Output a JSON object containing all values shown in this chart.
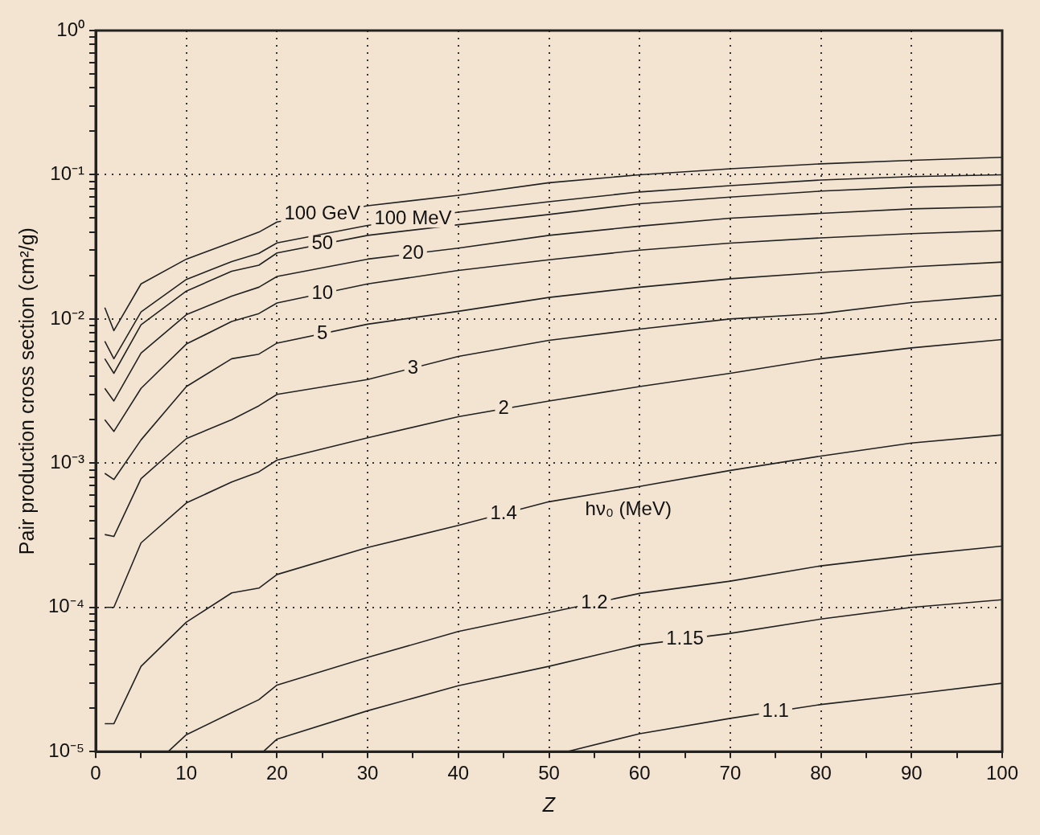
{
  "chart_data": {
    "type": "line",
    "xlabel": "Z",
    "ylabel": "Pair production cross section (cm²/g)",
    "annotations": [
      "hν₀ (MeV)"
    ],
    "log": "y",
    "grid": true,
    "legend": false,
    "xlim": [
      0,
      100
    ],
    "xticks": [
      0,
      {
        "value": 5,
        "label": null
      },
      10,
      {
        "value": 15,
        "label": null
      },
      20,
      {
        "value": 25,
        "label": null
      },
      30,
      {
        "value": 35,
        "label": null
      },
      40,
      {
        "value": 45,
        "label": null
      },
      50,
      {
        "value": 55,
        "label": null
      },
      60,
      {
        "value": 65,
        "label": null
      },
      70,
      {
        "value": 75,
        "label": null
      },
      80,
      {
        "value": 85,
        "label": null
      },
      90,
      {
        "value": 95,
        "label": null
      },
      100
    ],
    "ylim": [
      1e-05,
      1
    ],
    "yticks": [
      {
        "value": 1e-05,
        "label": "10⁻⁵"
      },
      {
        "value": 2e-05,
        "label": null
      },
      {
        "value": 3e-05,
        "label": null
      },
      {
        "value": 4e-05,
        "label": null
      },
      {
        "value": 5e-05,
        "label": null
      },
      {
        "value": 6e-05,
        "label": null
      },
      {
        "value": 7e-05,
        "label": null
      },
      {
        "value": 8e-05,
        "label": null
      },
      {
        "value": 9e-05,
        "label": null
      },
      {
        "value": 0.0001,
        "label": "10⁻⁴"
      },
      {
        "value": 0.0002,
        "label": null
      },
      {
        "value": 0.0003,
        "label": null
      },
      {
        "value": 0.0004,
        "label": null
      },
      {
        "value": 0.0005,
        "label": null
      },
      {
        "value": 0.0006,
        "label": null
      },
      {
        "value": 0.0007,
        "label": null
      },
      {
        "value": 0.0008,
        "label": null
      },
      {
        "value": 0.0009,
        "label": null
      },
      {
        "value": 0.001,
        "label": "10⁻³"
      },
      {
        "value": 0.002,
        "label": null
      },
      {
        "value": 0.003,
        "label": null
      },
      {
        "value": 0.004,
        "label": null
      },
      {
        "value": 0.005,
        "label": null
      },
      {
        "value": 0.006,
        "label": null
      },
      {
        "value": 0.007,
        "label": null
      },
      {
        "value": 0.008,
        "label": null
      },
      {
        "value": 0.009,
        "label": null
      },
      {
        "value": 0.01,
        "label": "10⁻²"
      },
      {
        "value": 0.02,
        "label": null
      },
      {
        "value": 0.03,
        "label": null
      },
      {
        "value": 0.04,
        "label": null
      },
      {
        "value": 0.05,
        "label": null
      },
      {
        "value": 0.06,
        "label": null
      },
      {
        "value": 0.07,
        "label": null
      },
      {
        "value": 0.08,
        "label": null
      },
      {
        "value": 0.09,
        "label": null
      },
      {
        "value": 0.1,
        "label": "10⁻¹"
      },
      {
        "value": 0.2,
        "label": null
      },
      {
        "value": 0.3,
        "label": null
      },
      {
        "value": 0.4,
        "label": null
      },
      {
        "value": 0.5,
        "label": null
      },
      {
        "value": 0.6,
        "label": null
      },
      {
        "value": 0.7,
        "label": null
      },
      {
        "value": 0.8,
        "label": null
      },
      {
        "value": 0.9,
        "label": null
      },
      {
        "value": 1,
        "label": "10⁰"
      }
    ],
    "series": [
      {
        "name": "100 GeV",
        "color": "#222222",
        "x": [
          1,
          2,
          5,
          10,
          15,
          18,
          20,
          30,
          40,
          50,
          60,
          70,
          80,
          90,
          100
        ],
        "values": [
          0.012,
          0.0083,
          0.0175,
          0.026,
          0.034,
          0.04,
          0.047,
          0.061,
          0.072,
          0.088,
          0.1,
          0.11,
          0.119,
          0.126,
          0.132
        ]
      },
      {
        "name": "100 MeV",
        "color": "#222222",
        "x": [
          1,
          2,
          5,
          10,
          15,
          18,
          20,
          30,
          40,
          50,
          60,
          70,
          80,
          90,
          100
        ],
        "values": [
          0.007,
          0.0053,
          0.0112,
          0.0188,
          0.025,
          0.0285,
          0.0337,
          0.0445,
          0.055,
          0.065,
          0.076,
          0.084,
          0.092,
          0.097,
          0.1
        ]
      },
      {
        "name": "50",
        "color": "#222222",
        "x": [
          1,
          2,
          5,
          10,
          15,
          18,
          20,
          30,
          40,
          50,
          60,
          70,
          80,
          90,
          100
        ],
        "values": [
          0.0053,
          0.0042,
          0.0091,
          0.0156,
          0.0214,
          0.0236,
          0.0287,
          0.038,
          0.045,
          0.053,
          0.063,
          0.07,
          0.077,
          0.082,
          0.085
        ]
      },
      {
        "name": "20",
        "color": "#222222",
        "x": [
          1,
          2,
          5,
          10,
          15,
          18,
          20,
          30,
          40,
          50,
          60,
          70,
          80,
          90,
          100
        ],
        "values": [
          0.0033,
          0.0027,
          0.0058,
          0.0107,
          0.0144,
          0.0166,
          0.0197,
          0.026,
          0.031,
          0.038,
          0.044,
          0.05,
          0.054,
          0.058,
          0.06
        ]
      },
      {
        "name": "10",
        "color": "#222222",
        "x": [
          1,
          2,
          5,
          10,
          15,
          18,
          20,
          30,
          40,
          50,
          60,
          70,
          80,
          90,
          100
        ],
        "values": [
          0.002,
          0.00166,
          0.0033,
          0.0067,
          0.0096,
          0.0109,
          0.0129,
          0.0175,
          0.0217,
          0.0257,
          0.03,
          0.0336,
          0.0365,
          0.039,
          0.041
        ]
      },
      {
        "name": "5",
        "color": "#222222",
        "x": [
          1,
          2,
          5,
          10,
          15,
          18,
          20,
          30,
          40,
          50,
          60,
          70,
          80,
          90,
          100
        ],
        "values": [
          0.00085,
          0.00077,
          0.00145,
          0.0034,
          0.0053,
          0.0057,
          0.0068,
          0.0092,
          0.0113,
          0.0141,
          0.0166,
          0.019,
          0.021,
          0.023,
          0.0248
        ]
      },
      {
        "name": "3",
        "color": "#222222",
        "x": [
          1,
          2,
          5,
          10,
          15,
          18,
          20,
          30,
          40,
          50,
          60,
          70,
          80,
          90,
          100
        ],
        "values": [
          0.00032,
          0.00031,
          0.00078,
          0.00148,
          0.002,
          0.0025,
          0.003,
          0.0038,
          0.0055,
          0.0071,
          0.0085,
          0.01,
          0.0109,
          0.013,
          0.0146
        ]
      },
      {
        "name": "2",
        "color": "#222222",
        "x": [
          1,
          2,
          5,
          10,
          15,
          18,
          20,
          30,
          40,
          50,
          60,
          70,
          80,
          90,
          100
        ],
        "values": [
          0.0001,
          0.0001,
          0.00028,
          0.00053,
          0.00074,
          0.00087,
          0.00105,
          0.0015,
          0.0021,
          0.0027,
          0.0034,
          0.0042,
          0.0053,
          0.0063,
          0.0072
        ]
      },
      {
        "name": "1.4",
        "color": "#222222",
        "x": [
          1,
          2,
          5,
          10,
          15,
          18,
          20,
          30,
          40,
          50,
          60,
          70,
          80,
          90,
          100
        ],
        "values": [
          1.56e-05,
          1.56e-05,
          3.9e-05,
          7.9e-05,
          0.000126,
          0.000136,
          0.000169,
          0.00026,
          0.00037,
          0.00054,
          0.00069,
          0.00089,
          0.00112,
          0.00138,
          0.00157
        ]
      },
      {
        "name": "1.2",
        "color": "#222222",
        "x": [
          8,
          10,
          15,
          18,
          20,
          30,
          40,
          50,
          60,
          70,
          80,
          90,
          100
        ],
        "values": [
          1e-05,
          1.31e-05,
          1.86e-05,
          2.29e-05,
          2.89e-05,
          4.5e-05,
          6.8e-05,
          9.2e-05,
          0.000125,
          0.000152,
          0.000194,
          0.00023,
          0.000266
        ]
      },
      {
        "name": "1.15",
        "color": "#222222",
        "x": [
          18.5,
          20,
          30,
          40,
          50,
          60,
          70,
          80,
          90,
          100
        ],
        "values": [
          1e-05,
          1.22e-05,
          1.92e-05,
          2.86e-05,
          3.9e-05,
          5.5e-05,
          6.6e-05,
          8.3e-05,
          0.0001,
          0.000113
        ]
      },
      {
        "name": "1.1",
        "color": "#222222",
        "x": [
          52,
          60,
          70,
          80,
          90,
          100
        ],
        "values": [
          1e-05,
          1.33e-05,
          1.7e-05,
          2.12e-05,
          2.5e-05,
          2.98e-05
        ]
      }
    ]
  }
}
